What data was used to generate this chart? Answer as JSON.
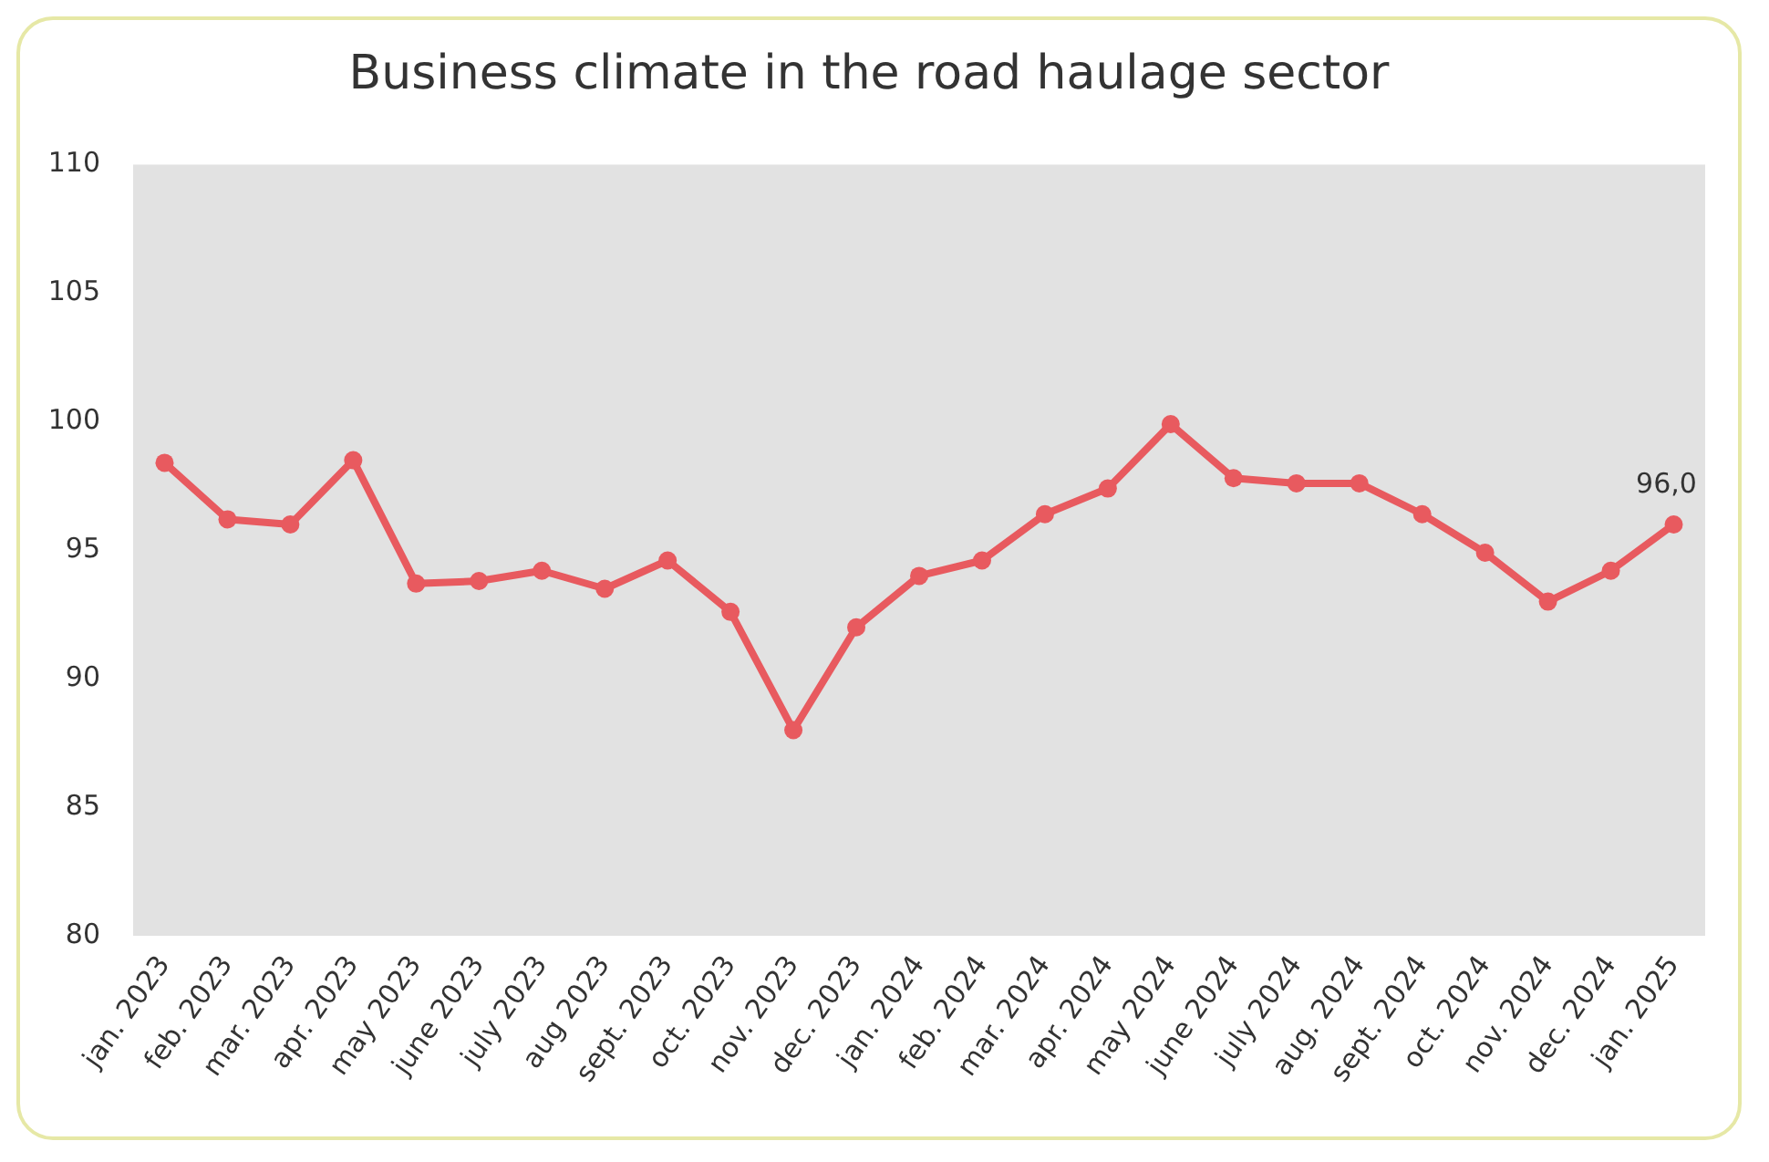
{
  "chart_data": {
    "type": "line",
    "title": "Business climate in the road haulage sector",
    "categories": [
      "jan. 2023",
      "feb. 2023",
      "mar. 2023",
      "apr. 2023",
      "may 2023",
      "june 2023",
      "july 2023",
      "aug 2023",
      "sept. 2023",
      "oct. 2023",
      "nov. 2023",
      "dec. 2023",
      "jan. 2024",
      "feb. 2024",
      "mar. 2024",
      "apr. 2024",
      "may 2024",
      "june 2024",
      "july 2024",
      "aug. 2024",
      "sept. 2024",
      "oct. 2024",
      "nov. 2024",
      "dec. 2024",
      "jan. 2025"
    ],
    "values": [
      98.4,
      96.2,
      96.0,
      98.5,
      93.7,
      93.8,
      94.2,
      93.5,
      94.6,
      92.6,
      88.0,
      92.0,
      94.0,
      94.6,
      96.4,
      97.4,
      99.9,
      97.8,
      97.6,
      97.6,
      96.4,
      94.9,
      93.0,
      94.2,
      96.0
    ],
    "value_labels": [
      null,
      null,
      null,
      null,
      null,
      null,
      null,
      null,
      null,
      null,
      null,
      null,
      null,
      null,
      null,
      null,
      null,
      null,
      null,
      null,
      null,
      null,
      null,
      null,
      "96,0"
    ],
    "color": "#e85a5f",
    "marker": "circle",
    "line_style": "solid",
    "ylim": [
      80,
      110
    ],
    "yticks": [
      80,
      85,
      90,
      95,
      100,
      105,
      110
    ]
  }
}
